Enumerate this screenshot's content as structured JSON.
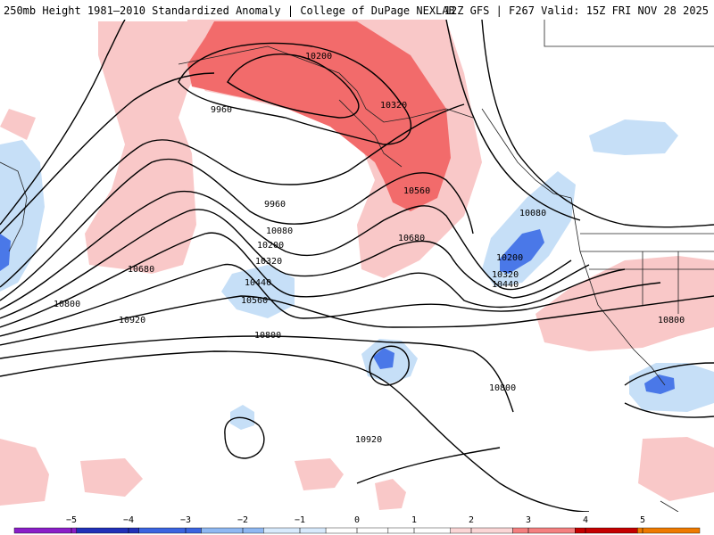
{
  "header": {
    "left": "250mb Height 1981–2010 Standardized Anomaly | College of DuPage NEXLAB",
    "right": "12Z GFS | F267 Valid: 15Z FRI NOV 28 2025"
  },
  "colors": {
    "pos1": "#f9c8c8",
    "pos2": "#f26b6b",
    "neg1": "#c6dff7",
    "neg2": "#4a78e8",
    "contour": "#000000",
    "coast": "#222222"
  },
  "contour_labels": [
    {
      "id": "l10200a",
      "text": "10200"
    },
    {
      "id": "l10320a",
      "text": "10320"
    },
    {
      "id": "l9960a",
      "text": "9960"
    },
    {
      "id": "l9960b",
      "text": "9960"
    },
    {
      "id": "l10560a",
      "text": "10560"
    },
    {
      "id": "l10080a",
      "text": "10080"
    },
    {
      "id": "l10200b",
      "text": "10200"
    },
    {
      "id": "l10320b",
      "text": "10320"
    },
    {
      "id": "l10440a",
      "text": "10440"
    },
    {
      "id": "l10560b",
      "text": "10560"
    },
    {
      "id": "l10680a",
      "text": "10680"
    },
    {
      "id": "l10680b",
      "text": "10680"
    },
    {
      "id": "l10800a",
      "text": "10800"
    },
    {
      "id": "l10920a",
      "text": "10920"
    },
    {
      "id": "l10800b",
      "text": "10800"
    },
    {
      "id": "l10800c",
      "text": "10800"
    },
    {
      "id": "l10920b",
      "text": "10920"
    },
    {
      "id": "l10080b",
      "text": "10080"
    },
    {
      "id": "l10200c",
      "text": "10200"
    },
    {
      "id": "l10320c",
      "text": "10320"
    },
    {
      "id": "l10440b",
      "text": "10440"
    },
    {
      "id": "l10800d",
      "text": "10800"
    }
  ],
  "legend": {
    "ticks": [
      "−5",
      "−4",
      "−3",
      "−2",
      "−1",
      "0",
      "1",
      "2",
      "3",
      "4",
      "5"
    ],
    "colors": [
      "#e070e0",
      "#8a1ec8",
      "#2030b8",
      "#3a64e0",
      "#8fb8f2",
      "#d8eafc",
      "#ffffff",
      "#ffffff",
      "#fbd6d6",
      "#f48080",
      "#c40000",
      "#ee7a00",
      "#f4b400"
    ]
  }
}
